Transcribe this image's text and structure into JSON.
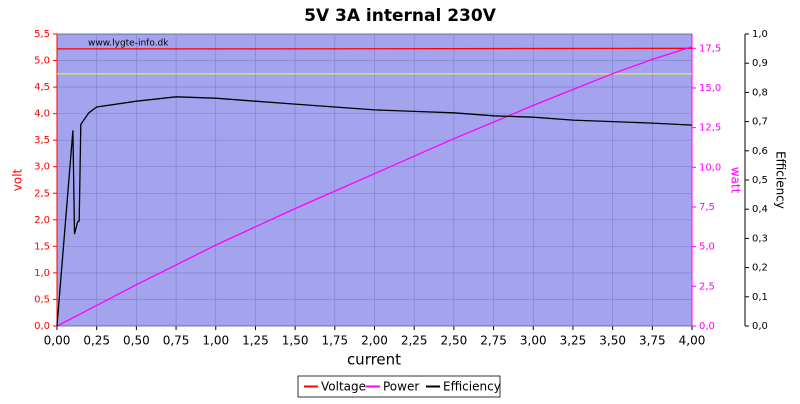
{
  "chart_data": {
    "type": "line",
    "title": "5V 3A internal 230V",
    "watermark": "www.lygte-info.dk",
    "x_label": "current",
    "y_label": "volt",
    "y2_label": "watt",
    "y3_label": "Efficiency",
    "xlim": [
      0,
      4
    ],
    "xticks": [
      {
        "value": 0,
        "label": "0,00"
      },
      {
        "value": 0.25,
        "label": "0,25"
      },
      {
        "value": 0.5,
        "label": "0,50"
      },
      {
        "value": 0.75,
        "label": "0,75"
      },
      {
        "value": 1,
        "label": "1,00"
      },
      {
        "value": 1.25,
        "label": "1,25"
      },
      {
        "value": 1.5,
        "label": "1,50"
      },
      {
        "value": 1.75,
        "label": "1,75"
      },
      {
        "value": 2,
        "label": "2,00"
      },
      {
        "value": 2.25,
        "label": "2,25"
      },
      {
        "value": 2.5,
        "label": "2,50"
      },
      {
        "value": 2.75,
        "label": "2,75"
      },
      {
        "value": 3,
        "label": "3,00"
      },
      {
        "value": 3.25,
        "label": "3,25"
      },
      {
        "value": 3.5,
        "label": "3,50"
      },
      {
        "value": 3.75,
        "label": "3,75"
      },
      {
        "value": 4,
        "label": "4,00"
      }
    ],
    "ylim": [
      0,
      5.5
    ],
    "yticks": [
      {
        "value": 0,
        "label": "0,0"
      },
      {
        "value": 0.5,
        "label": "0,5"
      },
      {
        "value": 1,
        "label": "1,0"
      },
      {
        "value": 1.5,
        "label": "1,5"
      },
      {
        "value": 2,
        "label": "2,0"
      },
      {
        "value": 2.5,
        "label": "2,5"
      },
      {
        "value": 3,
        "label": "3,0"
      },
      {
        "value": 3.5,
        "label": "3,5"
      },
      {
        "value": 4,
        "label": "4,0"
      },
      {
        "value": 4.5,
        "label": "4,5"
      },
      {
        "value": 5,
        "label": "5,0"
      },
      {
        "value": 5.5,
        "label": "5,5"
      }
    ],
    "y2lim": [
      0,
      18.4
    ],
    "y2ticks": [
      {
        "value": 0,
        "label": "0,0"
      },
      {
        "value": 2.5,
        "label": "2,5"
      },
      {
        "value": 5,
        "label": "5,0"
      },
      {
        "value": 7.5,
        "label": "7,5"
      },
      {
        "value": 10,
        "label": "10,0"
      },
      {
        "value": 12.5,
        "label": "12,5"
      },
      {
        "value": 15,
        "label": "15,0"
      },
      {
        "value": 17.5,
        "label": "17,5"
      }
    ],
    "y3lim": [
      0,
      1
    ],
    "y3ticks": [
      {
        "value": 0,
        "label": "0,0"
      },
      {
        "value": 0.1,
        "label": "0,1"
      },
      {
        "value": 0.2,
        "label": "0,2"
      },
      {
        "value": 0.3,
        "label": "0,3"
      },
      {
        "value": 0.4,
        "label": "0,4"
      },
      {
        "value": 0.5,
        "label": "0,5"
      },
      {
        "value": 0.6,
        "label": "0,6"
      },
      {
        "value": 0.7,
        "label": "0,7"
      },
      {
        "value": 0.8,
        "label": "0,8"
      },
      {
        "value": 0.9,
        "label": "0,9"
      },
      {
        "value": 1,
        "label": "1,0"
      }
    ],
    "grid": true,
    "hlines": [
      {
        "value": 4.75,
        "color": "#ffff00"
      }
    ],
    "series": [
      {
        "name": "Voltage",
        "color": "#ff0000",
        "axis": "y",
        "x": [
          0,
          1.3,
          4
        ],
        "values": [
          5.22,
          5.22,
          5.23
        ]
      },
      {
        "name": "Power",
        "color": "#ff00ff",
        "axis": "y2",
        "x": [
          0,
          0.25,
          0.5,
          0.75,
          1,
          1.25,
          1.5,
          1.75,
          2,
          2.25,
          2.5,
          2.75,
          3,
          3.25,
          3.5,
          3.75,
          4
        ],
        "values": [
          0,
          1.3,
          2.6,
          3.85,
          5.1,
          6.25,
          7.4,
          8.5,
          9.6,
          10.7,
          11.8,
          12.85,
          13.9,
          14.9,
          15.9,
          16.8,
          17.6
        ]
      },
      {
        "name": "Efficiency",
        "color": "#000000",
        "axis": "y3",
        "x": [
          0,
          0.1,
          0.11,
          0.13,
          0.14,
          0.15,
          0.2,
          0.25,
          0.5,
          0.75,
          1,
          1.25,
          1.5,
          1.75,
          2,
          2.25,
          2.5,
          2.75,
          3,
          3.25,
          3.5,
          3.75,
          4
        ],
        "values": [
          0,
          0.67,
          0.315,
          0.356,
          0.36,
          0.69,
          0.73,
          0.75,
          0.77,
          0.785,
          0.78,
          0.77,
          0.76,
          0.75,
          0.74,
          0.735,
          0.73,
          0.72,
          0.715,
          0.705,
          0.7,
          0.695,
          0.688
        ]
      }
    ]
  }
}
